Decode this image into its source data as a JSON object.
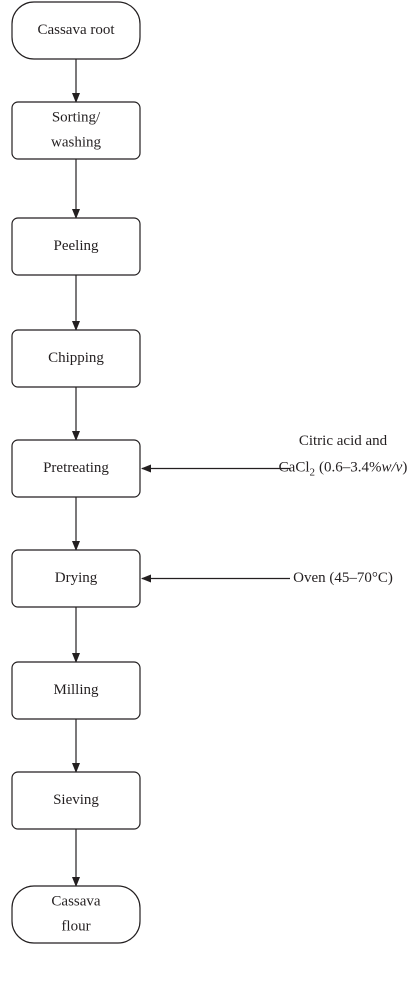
{
  "nodes": [
    {
      "lines": [
        "Cassava root"
      ],
      "shape": "rounded"
    },
    {
      "lines": [
        "Sorting/",
        "washing"
      ],
      "shape": "box"
    },
    {
      "lines": [
        "Peeling"
      ],
      "shape": "box"
    },
    {
      "lines": [
        "Chipping"
      ],
      "shape": "box"
    },
    {
      "lines": [
        "Pretreating"
      ],
      "shape": "box"
    },
    {
      "lines": [
        "Drying"
      ],
      "shape": "box"
    },
    {
      "lines": [
        "Milling"
      ],
      "shape": "box"
    },
    {
      "lines": [
        "Sieving"
      ],
      "shape": "box"
    },
    {
      "lines": [
        "Cassava",
        "flour"
      ],
      "shape": "rounded"
    }
  ],
  "inputs": [
    {
      "target": 4,
      "line1": "Citric acid and",
      "line2": [
        "CaCl",
        "2",
        "(0.6–3.4%",
        "w/v",
        ")"
      ]
    },
    {
      "target": 5,
      "line1": "Oven (45–70°C)"
    }
  ]
}
